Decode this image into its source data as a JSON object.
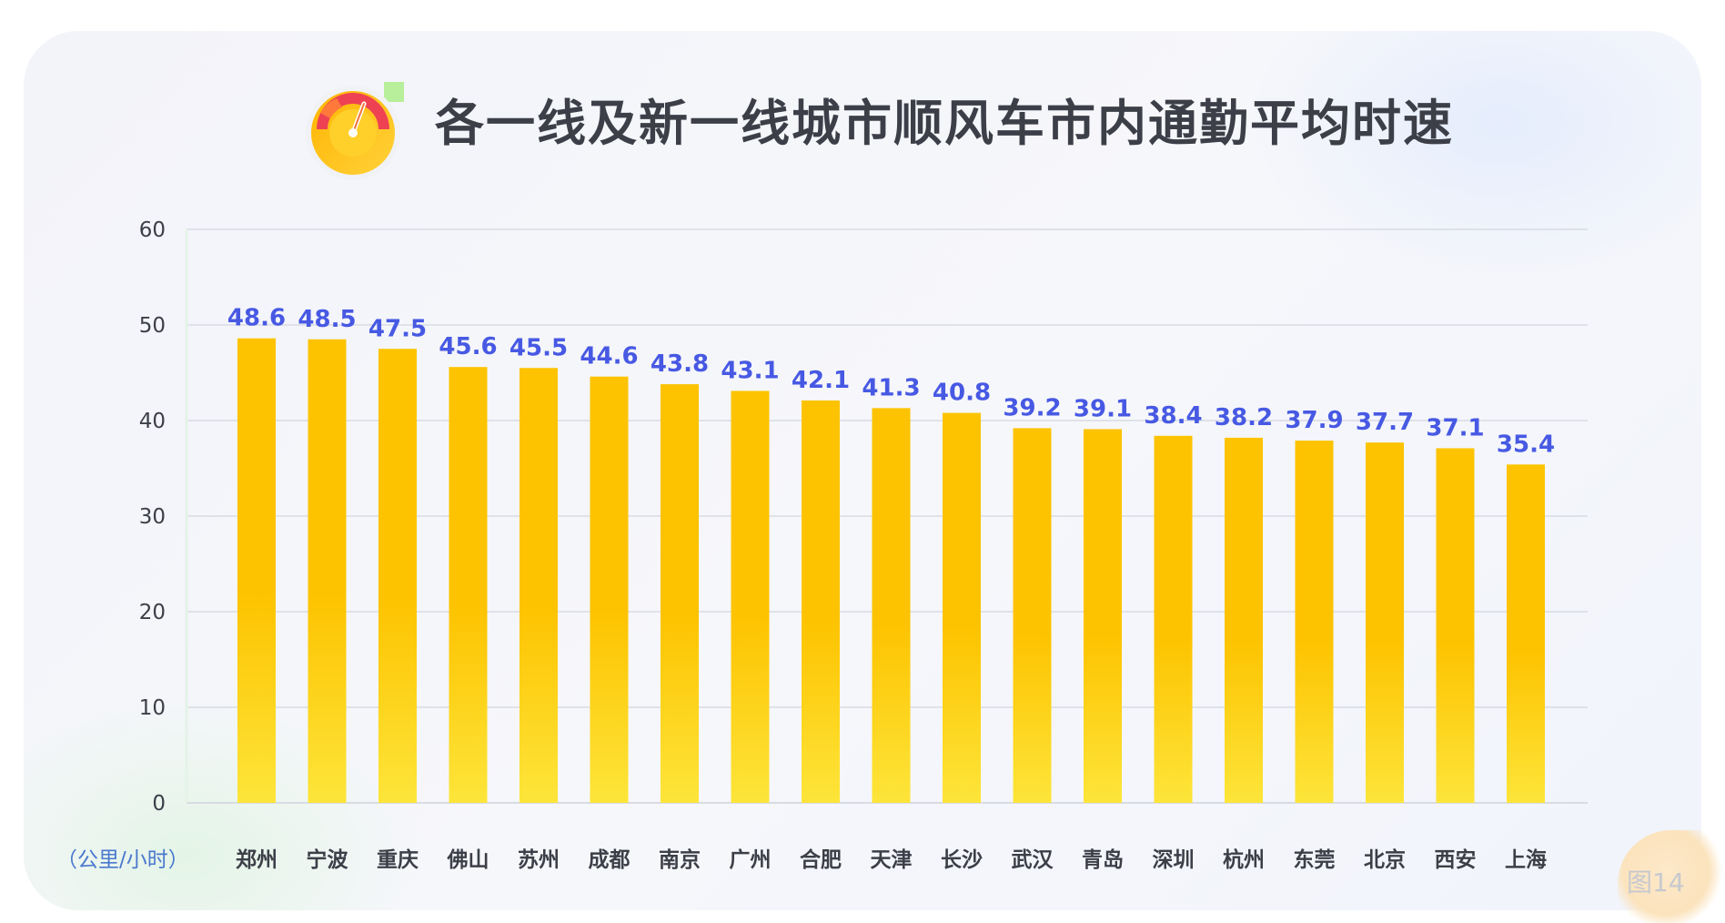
{
  "figure": {
    "title": "各一线及新一线城市顺风车市内通勤平均时速",
    "unit_label": "（公里/小时）",
    "figure_number": "图14"
  },
  "colors": {
    "bar_top": "#fdc300",
    "bar_bottom": "#fde53a",
    "value_label": "#4759e3",
    "category_label": "#3c3f48",
    "unit_label": "#4a78ce",
    "grid": "#d8dbe2",
    "tick_label": "#3c3f48"
  },
  "chart_data": {
    "type": "bar",
    "title": "各一线及新一线城市顺风车市内通勤平均时速",
    "xlabel": "",
    "ylabel": "（公里/小时）",
    "ylim": [
      0,
      60
    ],
    "yticks": [
      0,
      10,
      20,
      30,
      40,
      50,
      60
    ],
    "grid": true,
    "legend": "none",
    "categories": [
      "郑州",
      "宁波",
      "重庆",
      "佛山",
      "苏州",
      "成都",
      "南京",
      "广州",
      "合肥",
      "天津",
      "长沙",
      "武汉",
      "青岛",
      "深圳",
      "杭州",
      "东莞",
      "北京",
      "西安",
      "上海"
    ],
    "values": [
      48.6,
      48.5,
      47.5,
      45.6,
      45.5,
      44.6,
      43.8,
      43.1,
      42.1,
      41.3,
      40.8,
      39.2,
      39.1,
      38.4,
      38.2,
      37.9,
      37.7,
      37.1,
      35.4
    ],
    "value_labels": [
      "48.6",
      "48.5",
      "47.5",
      "45.6",
      "45.5",
      "44.6",
      "43.8",
      "43.1",
      "42.1",
      "41.3",
      "40.8",
      "39.2",
      "39.1",
      "38.4",
      "38.2",
      "37.9",
      "37.7",
      "37.1",
      "35.4"
    ]
  }
}
